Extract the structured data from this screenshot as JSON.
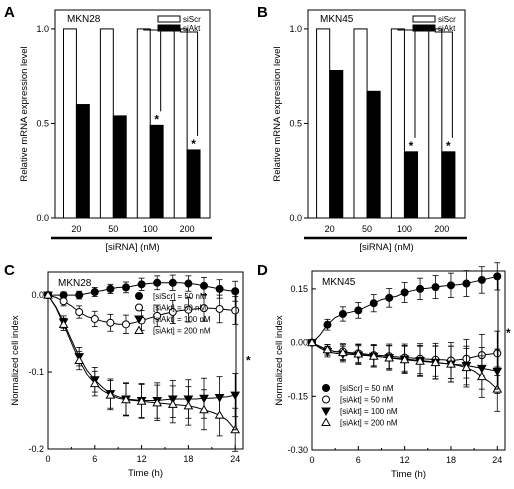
{
  "chart_data": [
    {
      "panel": "A",
      "type": "bar",
      "cell_line": "MKN28",
      "ylabel": "Relative mRNA expression level",
      "xlabel": "[siRNA] (nM)",
      "categories": [
        "20",
        "50",
        "100",
        "200"
      ],
      "series": [
        {
          "name": "siScr",
          "values": [
            1.0,
            1.0,
            1.0,
            1.0
          ],
          "color": "#ffffff"
        },
        {
          "name": "siAkt",
          "values": [
            0.6,
            0.54,
            0.49,
            0.36
          ],
          "color": "#000000"
        }
      ],
      "significant": [
        "*",
        "*"
      ],
      "ylim": [
        0,
        1.1
      ],
      "yticks": [
        "0.0",
        "0.5",
        "1.0"
      ],
      "legend": "top-right"
    },
    {
      "panel": "B",
      "type": "bar",
      "cell_line": "MKN45",
      "ylabel": "Relative mRNA expression level",
      "xlabel": "[siRNA] (nM)",
      "categories": [
        "20",
        "50",
        "100",
        "200"
      ],
      "series": [
        {
          "name": "siScr",
          "values": [
            1.0,
            1.0,
            1.0,
            1.0
          ],
          "color": "#ffffff"
        },
        {
          "name": "siAkt",
          "values": [
            0.78,
            0.67,
            0.35,
            0.35
          ],
          "color": "#000000"
        }
      ],
      "significant": [
        "*",
        "*"
      ],
      "ylim": [
        0,
        1.1
      ],
      "yticks": [
        "0.0",
        "0.5",
        "1.0"
      ],
      "legend": "top-right"
    },
    {
      "panel": "C",
      "type": "line",
      "cell_line": "MKN28",
      "ylabel": "Normalized cell index",
      "xlabel": "Time (h)",
      "xlim": [
        0,
        25
      ],
      "ylim": [
        -0.2,
        0.03
      ],
      "xticks": [
        "0",
        "6",
        "12",
        "18",
        "24"
      ],
      "yticks": [
        "0.0",
        "-0.1",
        "-0.2"
      ],
      "x": [
        0,
        1,
        2,
        3,
        4,
        5,
        6,
        7,
        8,
        9,
        10,
        11,
        12,
        13,
        14,
        15,
        16,
        17,
        18,
        19,
        20,
        21,
        22,
        23,
        24
      ],
      "series": [
        {
          "name": "[siScr] =   50 nM",
          "marker": "circle-filled",
          "values": [
            0.0,
            0.0,
            0.0,
            0.0,
            0.0,
            0.002,
            0.004,
            0.006,
            0.008,
            0.01,
            0.01,
            0.012,
            0.014,
            0.015,
            0.016,
            0.016,
            0.016,
            0.016,
            0.015,
            0.014,
            0.012,
            0.01,
            0.008,
            0.006,
            0.005
          ],
          "errors": [
            0.004,
            0.004,
            0.004,
            0.004,
            0.005,
            0.005,
            0.006,
            0.006,
            0.006,
            0.007,
            0.007,
            0.008,
            0.008,
            0.009,
            0.009,
            0.009,
            0.01,
            0.01,
            0.01,
            0.011,
            0.011,
            0.012,
            0.012,
            0.012,
            0.013
          ]
        },
        {
          "name": "[siAkt] =   50 nM",
          "marker": "circle-open",
          "values": [
            0.0,
            -0.003,
            -0.008,
            -0.014,
            -0.022,
            -0.028,
            -0.031,
            -0.034,
            -0.036,
            -0.038,
            -0.038,
            -0.036,
            -0.033,
            -0.03,
            -0.027,
            -0.024,
            -0.022,
            -0.02,
            -0.019,
            -0.018,
            -0.017,
            -0.017,
            -0.018,
            -0.019,
            -0.02
          ],
          "errors": [
            0.004,
            0.005,
            0.006,
            0.007,
            0.008,
            0.009,
            0.01,
            0.01,
            0.011,
            0.011,
            0.012,
            0.012,
            0.013,
            0.013,
            0.014,
            0.014,
            0.015,
            0.015,
            0.016,
            0.016,
            0.017,
            0.017,
            0.018,
            0.018,
            0.018
          ]
        },
        {
          "name": "[siAkt] = 100 nM",
          "marker": "triangle-down-filled",
          "values": [
            0.0,
            -0.015,
            -0.035,
            -0.058,
            -0.08,
            -0.098,
            -0.11,
            -0.12,
            -0.128,
            -0.132,
            -0.135,
            -0.136,
            -0.137,
            -0.137,
            -0.137,
            -0.136,
            -0.135,
            -0.135,
            -0.135,
            -0.135,
            -0.134,
            -0.134,
            -0.133,
            -0.132,
            -0.13
          ],
          "errors": [
            0.004,
            0.006,
            0.008,
            0.01,
            0.012,
            0.014,
            0.016,
            0.018,
            0.019,
            0.02,
            0.021,
            0.022,
            0.022,
            0.023,
            0.023,
            0.024,
            0.024,
            0.025,
            0.025,
            0.026,
            0.026,
            0.027,
            0.027,
            0.028,
            0.028
          ]
        },
        {
          "name": "[siAkt] = 200 nM",
          "marker": "triangle-up-open",
          "values": [
            0.0,
            -0.016,
            -0.038,
            -0.062,
            -0.085,
            -0.103,
            -0.115,
            -0.124,
            -0.13,
            -0.134,
            -0.136,
            -0.137,
            -0.138,
            -0.139,
            -0.14,
            -0.141,
            -0.142,
            -0.143,
            -0.144,
            -0.146,
            -0.149,
            -0.152,
            -0.156,
            -0.163,
            -0.175
          ],
          "errors": [
            0.004,
            0.006,
            0.008,
            0.01,
            0.012,
            0.014,
            0.016,
            0.018,
            0.019,
            0.02,
            0.021,
            0.022,
            0.022,
            0.023,
            0.023,
            0.024,
            0.024,
            0.025,
            0.025,
            0.026,
            0.026,
            0.027,
            0.027,
            0.028,
            0.028
          ]
        }
      ],
      "marker_every": 2,
      "significant": "*",
      "legend": "top-right"
    },
    {
      "panel": "D",
      "type": "line",
      "cell_line": "MKN45",
      "ylabel": "Normalized cell index",
      "xlabel": "Time (h)",
      "xlim": [
        0,
        25
      ],
      "ylim": [
        -0.3,
        0.2
      ],
      "xticks": [
        "0",
        "6",
        "12",
        "18",
        "24"
      ],
      "yticks": [
        "0.15",
        "0.00",
        "-0.15",
        "-0.30"
      ],
      "x": [
        0,
        1,
        2,
        3,
        4,
        5,
        6,
        7,
        8,
        9,
        10,
        11,
        12,
        13,
        14,
        15,
        16,
        17,
        18,
        19,
        20,
        21,
        22,
        23,
        24
      ],
      "series": [
        {
          "name": "[siScr] =   50 nM",
          "marker": "circle-filled",
          "values": [
            0.0,
            0.02,
            0.05,
            0.07,
            0.08,
            0.085,
            0.09,
            0.1,
            0.11,
            0.12,
            0.125,
            0.13,
            0.14,
            0.145,
            0.15,
            0.152,
            0.155,
            0.158,
            0.16,
            0.162,
            0.165,
            0.17,
            0.175,
            0.18,
            0.185
          ],
          "errors": [
            0.005,
            0.01,
            0.015,
            0.018,
            0.02,
            0.02,
            0.022,
            0.022,
            0.024,
            0.025,
            0.026,
            0.027,
            0.028,
            0.029,
            0.03,
            0.031,
            0.032,
            0.033,
            0.034,
            0.035,
            0.036,
            0.036,
            0.037,
            0.038,
            0.038
          ]
        },
        {
          "name": "[siAkt] =   50 nM",
          "marker": "circle-open",
          "values": [
            0.0,
            -0.01,
            -0.02,
            -0.025,
            -0.025,
            -0.028,
            -0.03,
            -0.032,
            -0.035,
            -0.036,
            -0.038,
            -0.04,
            -0.042,
            -0.043,
            -0.045,
            -0.046,
            -0.048,
            -0.048,
            -0.05,
            -0.048,
            -0.045,
            -0.04,
            -0.035,
            -0.032,
            -0.03
          ],
          "errors": [
            0.005,
            0.01,
            0.015,
            0.02,
            0.022,
            0.024,
            0.026,
            0.028,
            0.03,
            0.032,
            0.034,
            0.036,
            0.038,
            0.04,
            0.042,
            0.044,
            0.046,
            0.048,
            0.05,
            0.052,
            0.054,
            0.056,
            0.058,
            0.06,
            0.062
          ]
        },
        {
          "name": "[siAkt] = 100 nM",
          "marker": "triangle-down-filled",
          "values": [
            0.0,
            -0.015,
            -0.025,
            -0.03,
            -0.032,
            -0.033,
            -0.035,
            -0.036,
            -0.038,
            -0.04,
            -0.042,
            -0.044,
            -0.046,
            -0.048,
            -0.05,
            -0.052,
            -0.055,
            -0.058,
            -0.06,
            -0.062,
            -0.064,
            -0.068,
            -0.072,
            -0.076,
            -0.08
          ],
          "errors": [
            0.005,
            0.01,
            0.015,
            0.02,
            0.022,
            0.024,
            0.026,
            0.028,
            0.03,
            0.032,
            0.034,
            0.036,
            0.038,
            0.04,
            0.042,
            0.044,
            0.046,
            0.048,
            0.05,
            0.052,
            0.054,
            0.056,
            0.058,
            0.06,
            0.062
          ]
        },
        {
          "name": "[siAkt] = 200 nM",
          "marker": "triangle-up-open",
          "values": [
            0.0,
            -0.012,
            -0.02,
            -0.025,
            -0.028,
            -0.03,
            -0.032,
            -0.035,
            -0.038,
            -0.04,
            -0.043,
            -0.045,
            -0.048,
            -0.05,
            -0.052,
            -0.054,
            -0.056,
            -0.058,
            -0.06,
            -0.064,
            -0.07,
            -0.08,
            -0.095,
            -0.11,
            -0.13
          ],
          "errors": [
            0.005,
            0.01,
            0.015,
            0.02,
            0.022,
            0.024,
            0.026,
            0.028,
            0.03,
            0.032,
            0.034,
            0.036,
            0.038,
            0.04,
            0.042,
            0.044,
            0.046,
            0.048,
            0.05,
            0.052,
            0.054,
            0.056,
            0.058,
            0.06,
            0.062
          ]
        }
      ],
      "marker_every": 2,
      "significant": "*",
      "legend": "bottom-left"
    }
  ]
}
